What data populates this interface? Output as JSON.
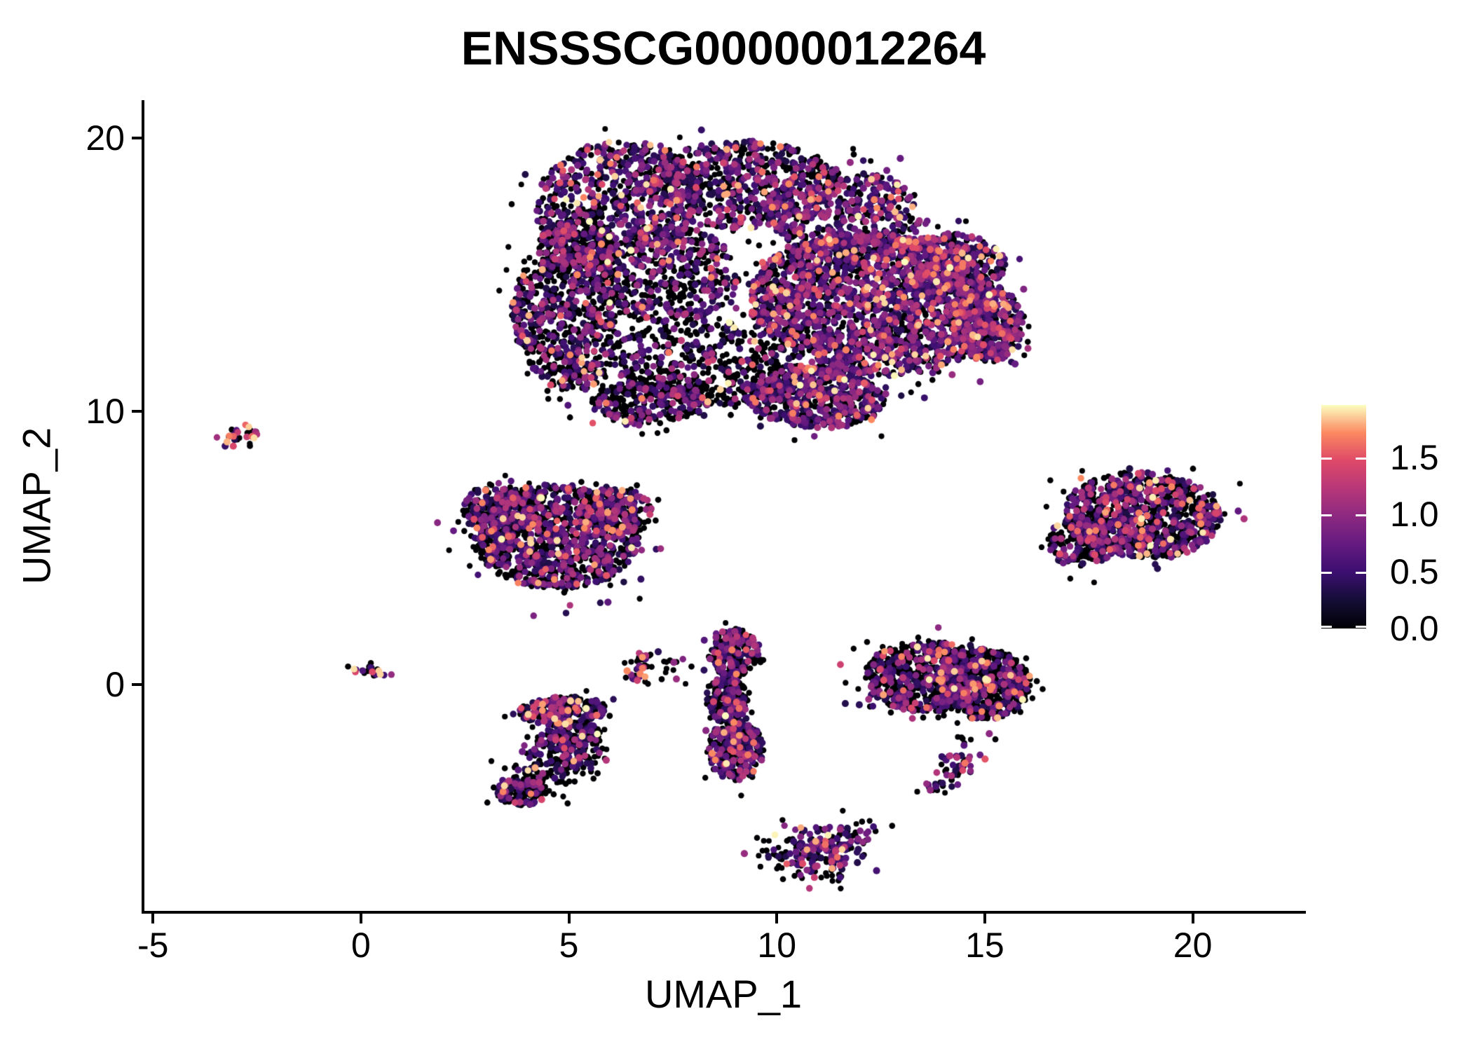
{
  "title": "ENSSSCG00000012264",
  "axes": {
    "x": {
      "label": "UMAP_1",
      "tick_values": [
        -5,
        0,
        5,
        10,
        15,
        20
      ],
      "tick_labels": [
        "-5",
        "0",
        "5",
        "10",
        "15",
        "20"
      ],
      "range": [
        -5.24,
        22.67
      ]
    },
    "y": {
      "label": "UMAP_2",
      "tick_values": [
        0,
        10,
        20
      ],
      "tick_labels": [
        "0",
        "10",
        "20"
      ],
      "range": [
        -8.33,
        21.38
      ]
    }
  },
  "legend": {
    "tick_labels": [
      "1.5",
      "1.0",
      "0.5",
      "0.0"
    ],
    "tick_values": [
      1.5,
      1.0,
      0.5,
      0.0
    ],
    "bar_min": 0,
    "bar_max": 1.96,
    "colormap": "magma"
  },
  "chart_data": {
    "type": "scatter",
    "title": "ENSSSCG00000012264",
    "xlabel": "UMAP_1",
    "ylabel": "UMAP_2",
    "x_range": [
      -5.24,
      22.67
    ],
    "y_range": [
      -8.33,
      21.38
    ],
    "grid": false,
    "legend_position": "right",
    "color_scale": {
      "name": "magma",
      "domain": [
        0,
        1.96
      ],
      "anchors": [
        [
          0,
          "#000004"
        ],
        [
          0.125,
          "#140e36"
        ],
        [
          0.25,
          "#3b0f70"
        ],
        [
          0.375,
          "#641a80"
        ],
        [
          0.5,
          "#8c2981"
        ],
        [
          0.625,
          "#b73779"
        ],
        [
          0.75,
          "#de4968"
        ],
        [
          0.875,
          "#fb8861"
        ],
        [
          1,
          "#fcfdbf"
        ]
      ]
    },
    "seed": 11,
    "point_radius": {
      "zero": 4.2,
      "expressing": 4.9
    },
    "note": "UMAP feature plot of ~13,000 cells; clusters below parameterize the observed point cloud (centers/extents in UMAP units, p0 = fraction non-expressing/black, hot = fraction of expressing cells with value >= 1.2)",
    "clusters": [
      {
        "name": "main-upper-left-lobe",
        "shape": "blob",
        "cx": 6.2,
        "cy": 17.6,
        "rx": 2.0,
        "ry": 2.3,
        "rot": -10,
        "n": 700,
        "p0": 0.52,
        "hot": 0.1
      },
      {
        "name": "main-top-middle",
        "shape": "blob",
        "cx": 9.2,
        "cy": 18.3,
        "rx": 2.3,
        "ry": 1.6,
        "rot": 0,
        "n": 650,
        "p0": 0.5,
        "hot": 0.1
      },
      {
        "name": "main-top-right",
        "shape": "blob",
        "cx": 11.6,
        "cy": 17.2,
        "rx": 1.9,
        "ry": 1.7,
        "rot": 0,
        "n": 520,
        "p0": 0.42,
        "hot": 0.12
      },
      {
        "name": "main-right-dense",
        "shape": "blob",
        "cx": 12.3,
        "cy": 13.9,
        "rx": 3.0,
        "ry": 2.6,
        "rot": -15,
        "n": 2100,
        "p0": 0.38,
        "hot": 0.12
      },
      {
        "name": "main-upper-right-shoulder",
        "shape": "blob",
        "cx": 14.2,
        "cy": 15.4,
        "rx": 1.3,
        "ry": 1.1,
        "rot": 0,
        "n": 350,
        "p0": 0.4,
        "hot": 0.12
      },
      {
        "name": "main-far-right-bump",
        "shape": "blob",
        "cx": 15.1,
        "cy": 13.2,
        "rx": 0.8,
        "ry": 1.4,
        "rot": 0,
        "n": 420,
        "p0": 0.4,
        "hot": 0.14
      },
      {
        "name": "main-left-arm",
        "shape": "blob",
        "cx": 4.9,
        "cy": 13.2,
        "rx": 1.25,
        "ry": 2.5,
        "rot": 8,
        "n": 640,
        "p0": 0.6,
        "hot": 0.12
      },
      {
        "name": "main-center-left",
        "shape": "blob",
        "cx": 7.3,
        "cy": 15.0,
        "rx": 1.8,
        "ry": 1.8,
        "rot": 0,
        "n": 520,
        "p0": 0.62,
        "hot": 0.08
      },
      {
        "name": "main-center-sparse",
        "shape": "blob",
        "cx": 8.3,
        "cy": 11.7,
        "rx": 2.3,
        "ry": 1.5,
        "rot": -12,
        "n": 430,
        "p0": 0.72,
        "hot": 0.08
      },
      {
        "name": "main-bottom-lobe",
        "shape": "blob",
        "cx": 10.9,
        "cy": 10.5,
        "rx": 1.7,
        "ry": 1.1,
        "rot": -8,
        "n": 620,
        "p0": 0.45,
        "hot": 0.12
      },
      {
        "name": "main-bottom-left",
        "shape": "blob",
        "cx": 7.0,
        "cy": 10.4,
        "rx": 1.5,
        "ry": 0.9,
        "rot": 10,
        "n": 300,
        "p0": 0.7,
        "hot": 0.1
      },
      {
        "name": "main-left-shoulder",
        "shape": "blob",
        "cx": 5.2,
        "cy": 16.0,
        "rx": 0.95,
        "ry": 1.05,
        "rot": 0,
        "n": 260,
        "p0": 0.55,
        "hot": 0.1
      },
      {
        "name": "far-left-streak",
        "shape": "streak",
        "x1": -3.2,
        "y1": 8.8,
        "x2": -2.5,
        "y2": 9.4,
        "w": 0.18,
        "n": 26,
        "p0": 0.3,
        "hot": 0.5
      },
      {
        "name": "mid-left-main",
        "shape": "blob",
        "cx": 4.7,
        "cy": 5.4,
        "rx": 2.0,
        "ry": 1.9,
        "rot": 0,
        "n": 1100,
        "p0": 0.55,
        "hot": 0.08
      },
      {
        "name": "mid-left-upper-left",
        "shape": "blob",
        "cx": 3.4,
        "cy": 6.4,
        "rx": 0.95,
        "ry": 1.0,
        "rot": 0,
        "n": 240,
        "p0": 0.5,
        "hot": 0.1
      },
      {
        "name": "mid-left-upper-right",
        "shape": "blob",
        "cx": 6.1,
        "cy": 6.3,
        "rx": 0.95,
        "ry": 0.95,
        "rot": 0,
        "n": 200,
        "p0": 0.52,
        "hot": 0.14
      },
      {
        "name": "origin-mini-streak",
        "shape": "streak",
        "x1": -0.28,
        "y1": 0.72,
        "x2": 0.45,
        "y2": 0.35,
        "w": 0.15,
        "n": 20,
        "p0": 0.45,
        "hot": 0.4
      },
      {
        "name": "s-cluster-top-bar",
        "shape": "blob",
        "cx": 4.85,
        "cy": -0.95,
        "rx": 1.05,
        "ry": 0.5,
        "rot": 5,
        "n": 260,
        "p0": 0.5,
        "hot": 0.16
      },
      {
        "name": "s-cluster-middle",
        "shape": "blob",
        "cx": 5.0,
        "cy": -1.9,
        "rx": 0.8,
        "ry": 0.55,
        "rot": 0,
        "n": 150,
        "p0": 0.75,
        "hot": 0.08
      },
      {
        "name": "s-cluster-arm",
        "shape": "streak",
        "x1": 5.4,
        "y1": -2.3,
        "x2": 4.0,
        "y2": -3.5,
        "w": 0.42,
        "n": 190,
        "p0": 0.62,
        "hot": 0.14
      },
      {
        "name": "s-cluster-bottom-lobe",
        "shape": "blob",
        "cx": 3.85,
        "cy": -3.95,
        "rx": 0.6,
        "ry": 0.5,
        "rot": 0,
        "n": 130,
        "p0": 0.68,
        "hot": 0.18
      },
      {
        "name": "small-arc",
        "shape": "streak",
        "x1": 6.78,
        "y1": 1.2,
        "x2": 6.72,
        "y2": 0.15,
        "w": 0.16,
        "n": 40,
        "p0": 0.55,
        "hot": 0.18
      },
      {
        "name": "small-arc-satellites",
        "shape": "blob",
        "cx": 7.5,
        "cy": 0.55,
        "rx": 0.5,
        "ry": 0.45,
        "rot": 0,
        "n": 14,
        "p0": 0.75,
        "hot": 0.15
      },
      {
        "name": "vertical-top",
        "shape": "blob",
        "cx": 8.95,
        "cy": 1.15,
        "rx": 0.6,
        "ry": 0.9,
        "rot": 0,
        "n": 210,
        "p0": 0.55,
        "hot": 0.1
      },
      {
        "name": "vertical-middle",
        "shape": "blob",
        "cx": 8.8,
        "cy": -0.55,
        "rx": 0.5,
        "ry": 0.85,
        "rot": 0,
        "n": 190,
        "p0": 0.6,
        "hot": 0.1
      },
      {
        "name": "vertical-bottom",
        "shape": "blob",
        "cx": 9.0,
        "cy": -2.4,
        "rx": 0.68,
        "ry": 1.1,
        "rot": 0,
        "n": 310,
        "p0": 0.5,
        "hot": 0.14
      },
      {
        "name": "right-center-left-part",
        "shape": "blob",
        "cx": 13.6,
        "cy": 0.3,
        "rx": 1.5,
        "ry": 1.3,
        "rot": 0,
        "n": 700,
        "p0": 0.6,
        "hot": 0.14
      },
      {
        "name": "right-center-right-part",
        "shape": "blob",
        "cx": 15.0,
        "cy": 0.0,
        "rx": 1.1,
        "ry": 1.3,
        "rot": 0,
        "n": 560,
        "p0": 0.65,
        "hot": 0.12
      },
      {
        "name": "right-center-tail",
        "shape": "streak",
        "x1": 14.75,
        "y1": -2.2,
        "x2": 13.75,
        "y2": -3.9,
        "w": 0.28,
        "n": 60,
        "p0": 0.45,
        "hot": 0.12
      },
      {
        "name": "right-oval-main",
        "shape": "blob",
        "cx": 18.8,
        "cy": 6.2,
        "rx": 1.9,
        "ry": 1.55,
        "rot": -12,
        "n": 950,
        "p0": 0.55,
        "hot": 0.16
      },
      {
        "name": "right-oval-left-bump",
        "shape": "blob",
        "cx": 17.35,
        "cy": 5.2,
        "rx": 0.85,
        "ry": 0.95,
        "rot": 0,
        "n": 190,
        "p0": 0.6,
        "hot": 0.12
      },
      {
        "name": "bottom-cluster",
        "shape": "streak",
        "x1": 10.3,
        "y1": -6.5,
        "x2": 11.55,
        "y2": -5.75,
        "w": 0.5,
        "n": 230,
        "p0": 0.48,
        "hot": 0.16
      }
    ]
  }
}
